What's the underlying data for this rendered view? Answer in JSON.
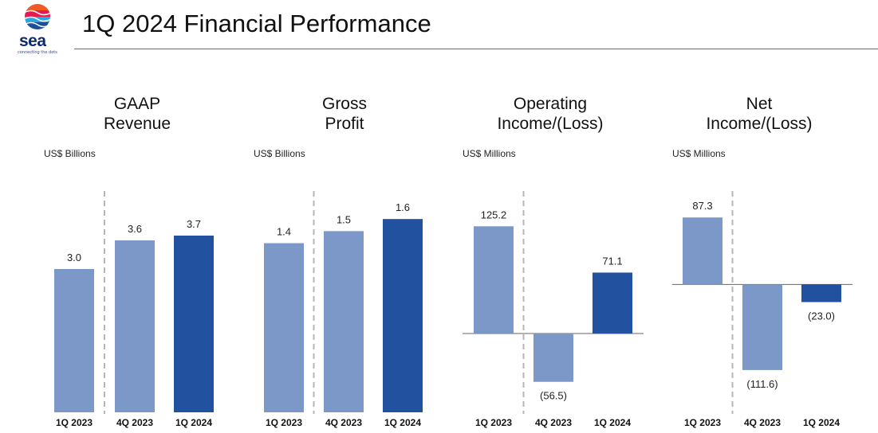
{
  "header": {
    "title": "1Q 2024 Financial Performance",
    "logo_text": "sea",
    "logo_tagline": "connecting the dots"
  },
  "colors": {
    "light_bar": "#7b98c8",
    "dark_bar": "#22519f",
    "divider": "#b5b5b5",
    "axis": "#666666"
  },
  "chart_data": [
    {
      "type": "bar",
      "title": [
        "GAAP",
        "Revenue"
      ],
      "unit_label": "US$ Billions",
      "categories": [
        "1Q 2023",
        "4Q 2023",
        "1Q 2024"
      ],
      "values": [
        3.0,
        3.6,
        3.7
      ],
      "value_labels": [
        "3.0",
        "3.6",
        "3.7"
      ],
      "highlight_index": 2,
      "divider_after_index": 0,
      "ylim": [
        0,
        4.3
      ]
    },
    {
      "type": "bar",
      "title": [
        "Gross",
        "Profit"
      ],
      "unit_label": "US$ Billions",
      "categories": [
        "1Q 2023",
        "4Q 2023",
        "1Q 2024"
      ],
      "values": [
        1.4,
        1.5,
        1.6
      ],
      "value_labels": [
        "1.4",
        "1.5",
        "1.6"
      ],
      "highlight_index": 2,
      "divider_after_index": 0,
      "ylim": [
        0,
        1.7
      ]
    },
    {
      "type": "bar",
      "title": [
        "Operating",
        "Income/(Loss)"
      ],
      "unit_label": "US$ Millions",
      "categories": [
        "1Q 2023",
        "4Q 2023",
        "1Q 2024"
      ],
      "values": [
        125.2,
        -56.5,
        71.1
      ],
      "value_labels": [
        "125.2",
        "(56.5)",
        "71.1"
      ],
      "highlight_index": 2,
      "divider_after_index": 0,
      "ylim": [
        -80,
        145
      ]
    },
    {
      "type": "bar",
      "title": [
        "Net",
        "Income/(Loss)"
      ],
      "unit_label": "US$ Millions",
      "categories": [
        "1Q 2023",
        "4Q 2023",
        "1Q 2024"
      ],
      "values": [
        87.3,
        -111.6,
        -23.0
      ],
      "value_labels": [
        "87.3",
        "(111.6)",
        "(23.0)"
      ],
      "highlight_index": 2,
      "divider_after_index": 0,
      "ylim": [
        -120,
        100
      ]
    }
  ]
}
